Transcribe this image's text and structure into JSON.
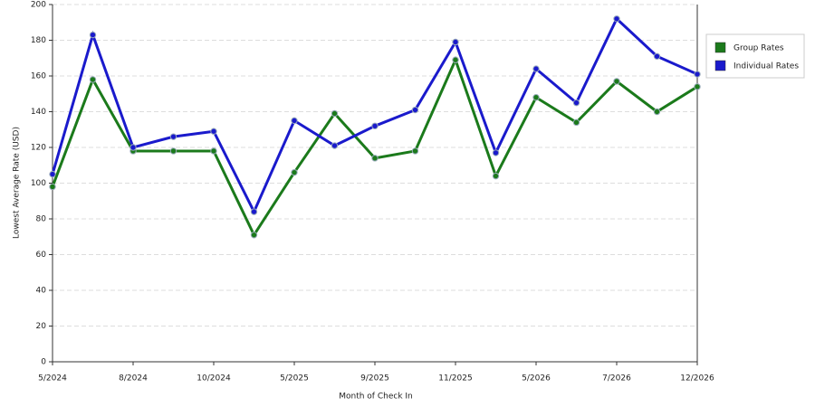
{
  "chart_data": {
    "type": "line",
    "x_label": "Month of Check In",
    "y_label": "Lowest Average Rate (USD)",
    "categories": [
      "5/2024",
      null,
      "8/2024",
      null,
      "10/2024",
      null,
      "5/2025",
      null,
      "9/2025",
      null,
      "11/2025",
      null,
      "5/2026",
      null,
      "7/2026",
      null,
      "12/2026"
    ],
    "series": [
      {
        "name": "Group Rates",
        "color": "#1b7a1b",
        "values": [
          98,
          158,
          118,
          118,
          118,
          71,
          106,
          139,
          114,
          118,
          169,
          104,
          148,
          134,
          157,
          140,
          154
        ]
      },
      {
        "name": "Individual Rates",
        "color": "#1a1acc",
        "values": [
          105,
          183,
          120,
          126,
          129,
          84,
          135,
          121,
          132,
          141,
          179,
          117,
          164,
          145,
          192,
          171,
          161
        ]
      }
    ],
    "ylim": [
      0,
      200
    ],
    "yticks": [
      0,
      20,
      40,
      60,
      80,
      100,
      120,
      140,
      160,
      180,
      200
    ],
    "grid": true,
    "legend": "right"
  }
}
